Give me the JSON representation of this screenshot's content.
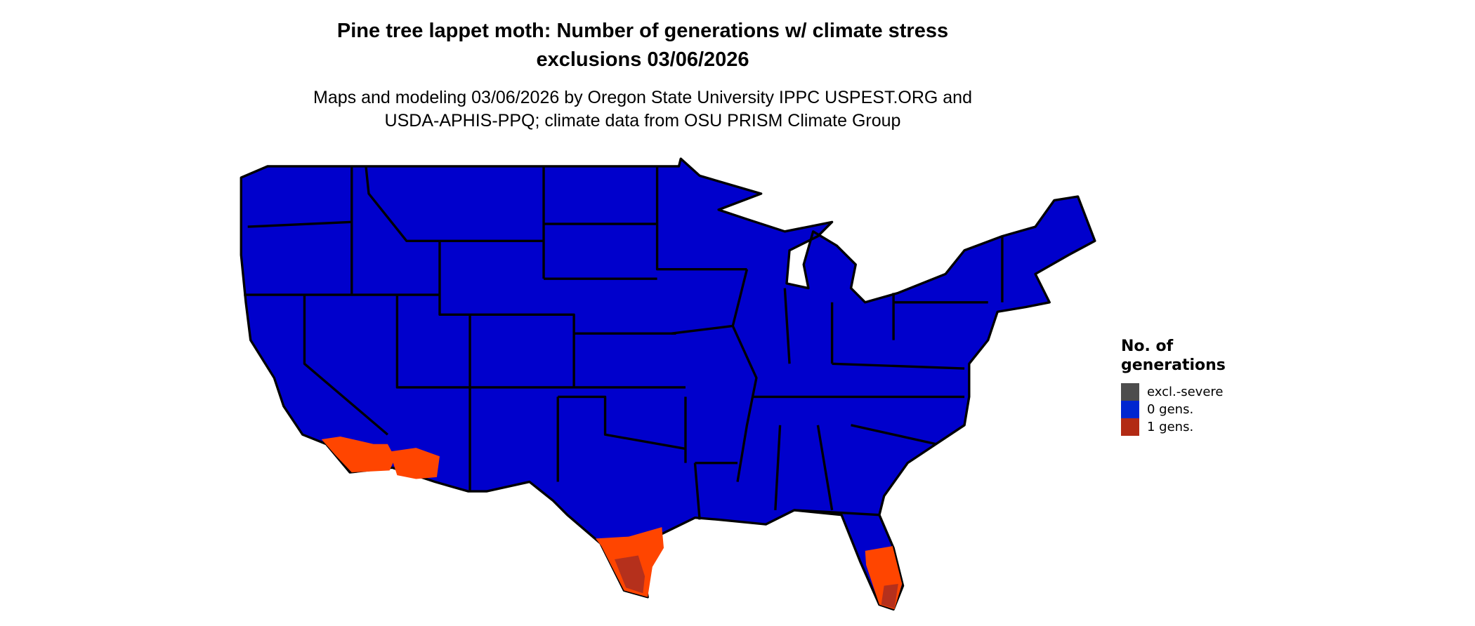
{
  "title_line1": "Pine tree lappet moth: Number of generations w/ climate stress",
  "title_line2": "exclusions 03/06/2026",
  "subtitle_line1": "Maps and modeling 03/06/2026 by Oregon State University IPPC USPEST.ORG and",
  "subtitle_line2": "USDA-APHIS-PPQ; climate data from OSU PRISM Climate Group",
  "map": {
    "region": "Contiguous United States",
    "colors": {
      "land_0_gens": "#0000cc",
      "one_gen": "#ff4500",
      "one_gen_dark": "#b5301c",
      "state_border": "#000000"
    }
  },
  "legend": {
    "title_line1": "No. of",
    "title_line2": "generations",
    "items": [
      {
        "label": "excl.-severe",
        "color": "#4d4d4d"
      },
      {
        "label": "0 gens.",
        "color": "#0026d0"
      },
      {
        "label": "1 gens.",
        "color": "#b22a14"
      }
    ]
  }
}
